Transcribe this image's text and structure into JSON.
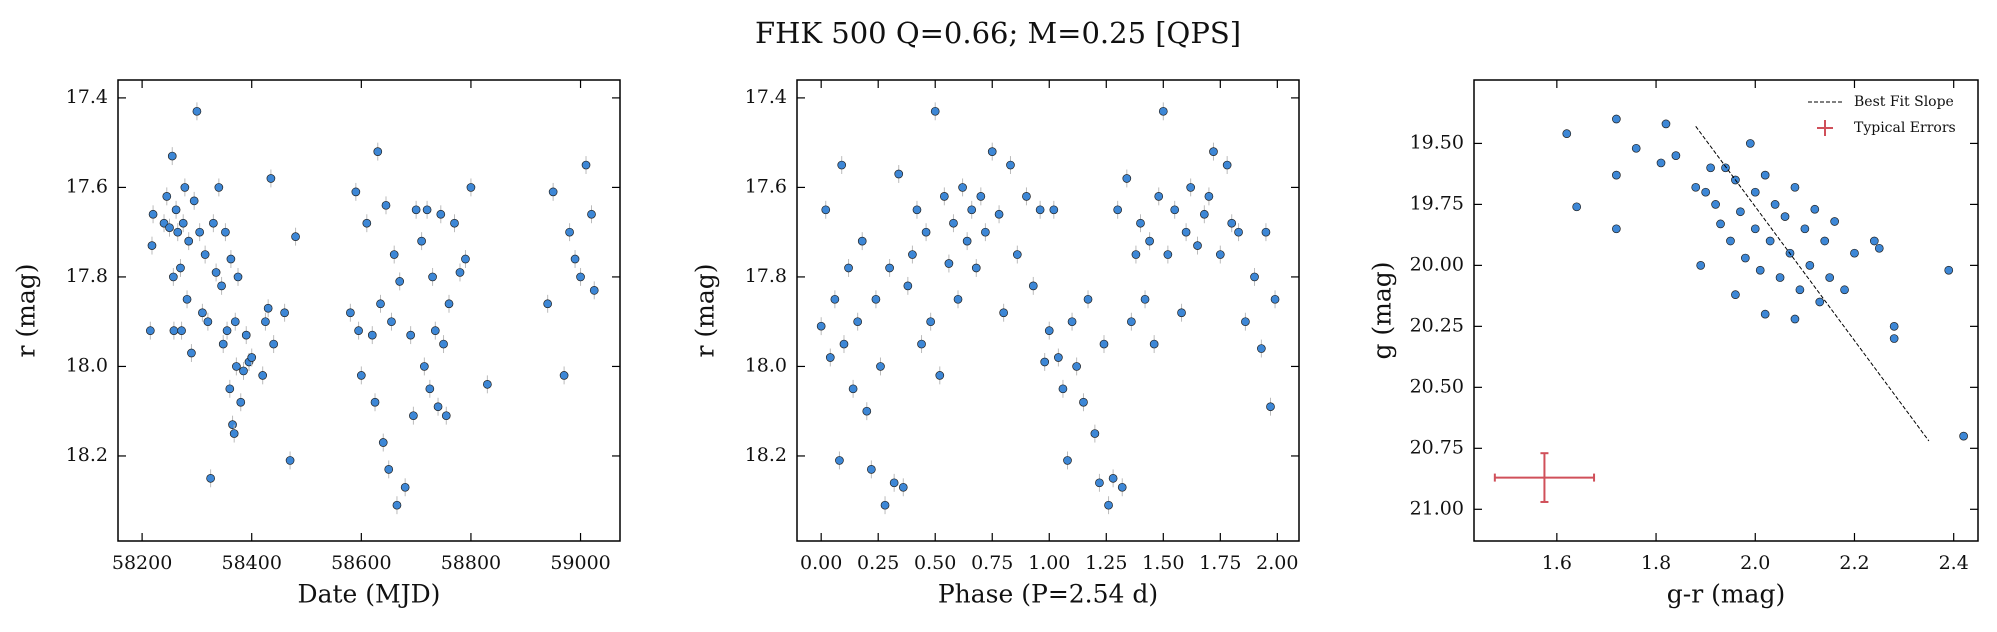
{
  "title": "FHK 500  Q=0.66; M=0.25 [QPS]",
  "chart_data": [
    {
      "type": "scatter",
      "xlabel": "Date (MJD)",
      "ylabel": "r (mag)",
      "color": "#3d87d6",
      "y_error": 0.02,
      "xlim": [
        58156,
        59072
      ],
      "ylim": [
        18.39,
        17.36
      ],
      "xticks": [
        58200,
        58400,
        58600,
        58800,
        59000
      ],
      "yticks": [
        17.4,
        17.6,
        17.8,
        {
          "value": 18,
          "label": "18.0"
        },
        18.2
      ],
      "x": [
        58215,
        58218,
        58220,
        58240,
        58245,
        58250,
        58255,
        58257,
        58258,
        58262,
        58265,
        58270,
        58272,
        58275,
        58278,
        58282,
        58285,
        58290,
        58295,
        58300,
        58305,
        58310,
        58315,
        58320,
        58325,
        58330,
        58335,
        58340,
        58345,
        58348,
        58352,
        58355,
        58360,
        58362,
        58365,
        58368,
        58370,
        58372,
        58375,
        58380,
        58385,
        58390,
        58395,
        58400,
        58420,
        58425,
        58430,
        58435,
        58440,
        58460,
        58470,
        58480,
        58580,
        58590,
        58595,
        58600,
        58610,
        58620,
        58625,
        58630,
        58635,
        58640,
        58645,
        58650,
        58655,
        58660,
        58665,
        58670,
        58680,
        58690,
        58695,
        58700,
        58710,
        58715,
        58720,
        58725,
        58730,
        58735,
        58740,
        58745,
        58750,
        58755,
        58760,
        58770,
        58780,
        58790,
        58800,
        58830,
        58940,
        58950,
        58970,
        58980,
        58990,
        59000,
        59010,
        59020,
        59025
      ],
      "values": [
        17.92,
        17.73,
        17.66,
        17.68,
        17.62,
        17.69,
        17.53,
        17.8,
        17.92,
        17.65,
        17.7,
        17.78,
        17.92,
        17.68,
        17.6,
        17.85,
        17.72,
        17.97,
        17.63,
        17.43,
        17.7,
        17.88,
        17.75,
        17.9,
        18.25,
        17.68,
        17.79,
        17.6,
        17.82,
        17.95,
        17.7,
        17.92,
        18.05,
        17.76,
        18.13,
        18.15,
        17.9,
        18.0,
        17.8,
        18.08,
        18.01,
        17.93,
        17.99,
        17.98,
        18.02,
        17.9,
        17.87,
        17.58,
        17.95,
        17.88,
        18.21,
        17.71,
        17.88,
        17.61,
        17.92,
        18.02,
        17.68,
        17.93,
        18.08,
        17.52,
        17.86,
        18.17,
        17.64,
        18.23,
        17.9,
        17.75,
        18.31,
        17.81,
        18.27,
        17.93,
        18.11,
        17.65,
        17.72,
        18.0,
        17.65,
        18.05,
        17.8,
        17.92,
        18.09,
        17.66,
        17.95,
        18.11,
        17.86,
        17.68,
        17.79,
        17.76,
        17.6,
        18.04,
        17.86,
        17.61,
        18.02,
        17.7,
        17.76,
        17.8,
        17.55,
        17.66,
        17.83
      ]
    },
    {
      "type": "scatter",
      "xlabel": "Phase (P=2.54 d)",
      "ylabel": "r (mag)",
      "color": "#3d87d6",
      "y_error": 0.02,
      "xlim": [
        -0.106,
        2.095
      ],
      "ylim": [
        18.39,
        17.36
      ],
      "xticks": [
        {
          "value": 0,
          "label": "0.00"
        },
        {
          "value": 0.25,
          "label": "0.25"
        },
        {
          "value": 0.5,
          "label": "0.50"
        },
        {
          "value": 0.75,
          "label": "0.75"
        },
        {
          "value": 1,
          "label": "1.00"
        },
        {
          "value": 1.25,
          "label": "1.25"
        },
        {
          "value": 1.5,
          "label": "1.50"
        },
        {
          "value": 1.75,
          "label": "1.75"
        },
        {
          "value": 2,
          "label": "2.00"
        }
      ],
      "yticks": [
        17.4,
        17.6,
        17.8,
        {
          "value": 18,
          "label": "18.0"
        },
        18.2
      ],
      "x": [
        0.0,
        0.02,
        0.04,
        0.06,
        0.08,
        0.09,
        0.1,
        0.12,
        0.14,
        0.16,
        0.18,
        0.2,
        0.22,
        0.24,
        0.26,
        0.28,
        0.3,
        0.32,
        0.34,
        0.36,
        0.38,
        0.4,
        0.42,
        0.44,
        0.46,
        0.48,
        0.5,
        0.52,
        0.54,
        0.56,
        0.58,
        0.6,
        0.62,
        0.64,
        0.66,
        0.68,
        0.7,
        0.72,
        0.75,
        0.78,
        0.8,
        0.83,
        0.86,
        0.9,
        0.93,
        0.96,
        0.98,
        1.0,
        1.02,
        1.04,
        1.06,
        1.08,
        1.1,
        1.12,
        1.15,
        1.17,
        1.2,
        1.22,
        1.24,
        1.26,
        1.28,
        1.3,
        1.32,
        1.34,
        1.36,
        1.38,
        1.4,
        1.42,
        1.44,
        1.46,
        1.48,
        1.5,
        1.52,
        1.55,
        1.58,
        1.6,
        1.62,
        1.65,
        1.68,
        1.7,
        1.72,
        1.75,
        1.78,
        1.8,
        1.83,
        1.86,
        1.9,
        1.93,
        1.95,
        1.97,
        1.99
      ],
      "values": [
        17.91,
        17.65,
        17.98,
        17.85,
        18.21,
        17.55,
        17.95,
        17.78,
        18.05,
        17.9,
        17.72,
        18.1,
        18.23,
        17.85,
        18.0,
        18.31,
        17.78,
        18.26,
        17.57,
        18.27,
        17.82,
        17.75,
        17.65,
        17.95,
        17.7,
        17.9,
        17.43,
        18.02,
        17.62,
        17.77,
        17.68,
        17.85,
        17.6,
        17.72,
        17.65,
        17.78,
        17.62,
        17.7,
        17.52,
        17.66,
        17.88,
        17.55,
        17.75,
        17.62,
        17.82,
        17.65,
        17.99,
        17.92,
        17.65,
        17.98,
        18.05,
        18.21,
        17.9,
        18.0,
        18.08,
        17.85,
        18.15,
        18.26,
        17.95,
        18.31,
        18.25,
        17.65,
        18.27,
        17.58,
        17.9,
        17.75,
        17.68,
        17.85,
        17.72,
        17.95,
        17.62,
        17.43,
        17.75,
        17.65,
        17.88,
        17.7,
        17.6,
        17.73,
        17.66,
        17.62,
        17.52,
        17.75,
        17.55,
        17.68,
        17.7,
        17.9,
        17.8,
        17.96,
        17.7,
        18.09,
        17.85
      ]
    },
    {
      "type": "scatter",
      "xlabel": "g-r (mag)",
      "ylabel": "g (mag)",
      "color": "#3d87d6",
      "legend": "upper right",
      "xlim": [
        1.433,
        2.449
      ],
      "ylim": [
        21.13,
        19.24
      ],
      "xticks": [
        {
          "value": 1.6,
          "label": "1.6"
        },
        {
          "value": 1.8,
          "label": "1.8"
        },
        {
          "value": 2,
          "label": "2.0"
        },
        {
          "value": 2.2,
          "label": "2.2"
        },
        {
          "value": 2.4,
          "label": "2.4"
        }
      ],
      "yticks": [
        {
          "value": 19.5,
          "label": "19.50"
        },
        19.75,
        {
          "value": 20,
          "label": "20.00"
        },
        20.25,
        {
          "value": 20.5,
          "label": "20.50"
        },
        20.75,
        {
          "value": 21,
          "label": "21.00"
        }
      ],
      "x": [
        1.62,
        1.64,
        1.72,
        1.72,
        1.72,
        1.76,
        1.82,
        1.81,
        1.84,
        1.88,
        1.89,
        1.9,
        1.91,
        1.92,
        1.93,
        1.94,
        1.95,
        1.96,
        1.97,
        1.98,
        1.99,
        2.0,
        2.0,
        2.01,
        2.02,
        2.03,
        2.04,
        2.05,
        2.06,
        2.07,
        2.08,
        2.09,
        2.1,
        2.11,
        2.12,
        2.13,
        2.14,
        2.15,
        2.16,
        2.18,
        2.2,
        2.24,
        2.25,
        2.28,
        2.28,
        2.39,
        2.42,
        1.96,
        2.02,
        2.08
      ],
      "values": [
        19.46,
        19.76,
        19.4,
        19.63,
        19.85,
        19.52,
        19.42,
        19.58,
        19.55,
        19.68,
        20.0,
        19.7,
        19.6,
        19.75,
        19.83,
        19.6,
        19.9,
        19.65,
        19.78,
        19.97,
        19.5,
        19.7,
        19.85,
        20.02,
        19.63,
        19.9,
        19.75,
        20.05,
        19.8,
        19.95,
        19.68,
        20.1,
        19.85,
        20.0,
        19.77,
        20.15,
        19.9,
        20.05,
        19.82,
        20.1,
        19.95,
        19.9,
        19.93,
        20.25,
        20.3,
        20.02,
        20.7,
        20.12,
        20.2,
        20.22
      ],
      "best_fit": {
        "name": "Best Fit Slope",
        "color": "#000000",
        "x": [
          1.88,
          2.35
        ],
        "y": [
          19.43,
          20.72
        ]
      },
      "typical_error": {
        "name": "Typical Errors",
        "color": "#d0505a",
        "x": 1.575,
        "y": 20.87,
        "xerr": 0.1,
        "yerr": 0.1
      }
    }
  ]
}
